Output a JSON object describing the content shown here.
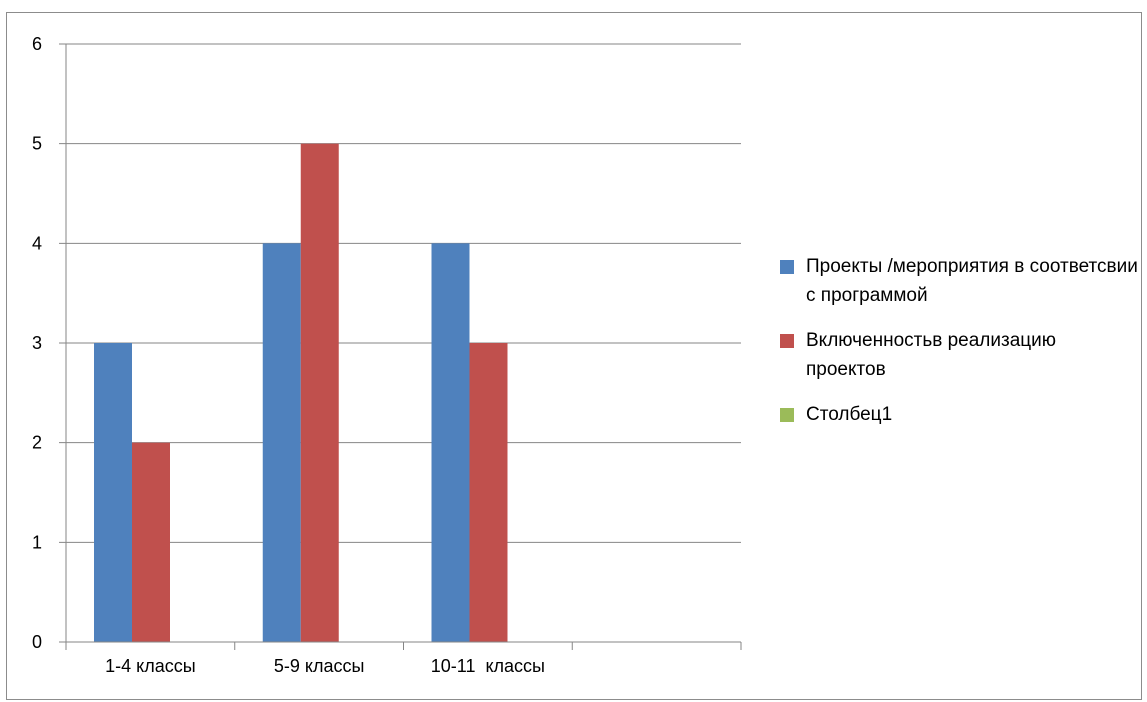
{
  "chart_data": {
    "type": "bar",
    "categories": [
      "1-4 классы",
      "5-9 классы",
      "10-11  классы",
      ""
    ],
    "series": [
      {
        "name": "Проекты /мероприятия в соответсвии с программой",
        "values": [
          3,
          4,
          4,
          null
        ],
        "color": "#4F81BD"
      },
      {
        "name": "Включенностьв  реализацию проектов",
        "values": [
          2,
          5,
          3,
          null
        ],
        "color": "#C0504D"
      },
      {
        "name": "Столбец1",
        "values": [
          null,
          null,
          null,
          null
        ],
        "color": "#9BBB59"
      }
    ],
    "title": "",
    "xlabel": "",
    "ylabel": "",
    "ylim": [
      0,
      6
    ],
    "yticks": [
      "0",
      "1",
      "2",
      "3",
      "4",
      "5",
      "6"
    ],
    "grid": true,
    "legend_position": "right"
  }
}
